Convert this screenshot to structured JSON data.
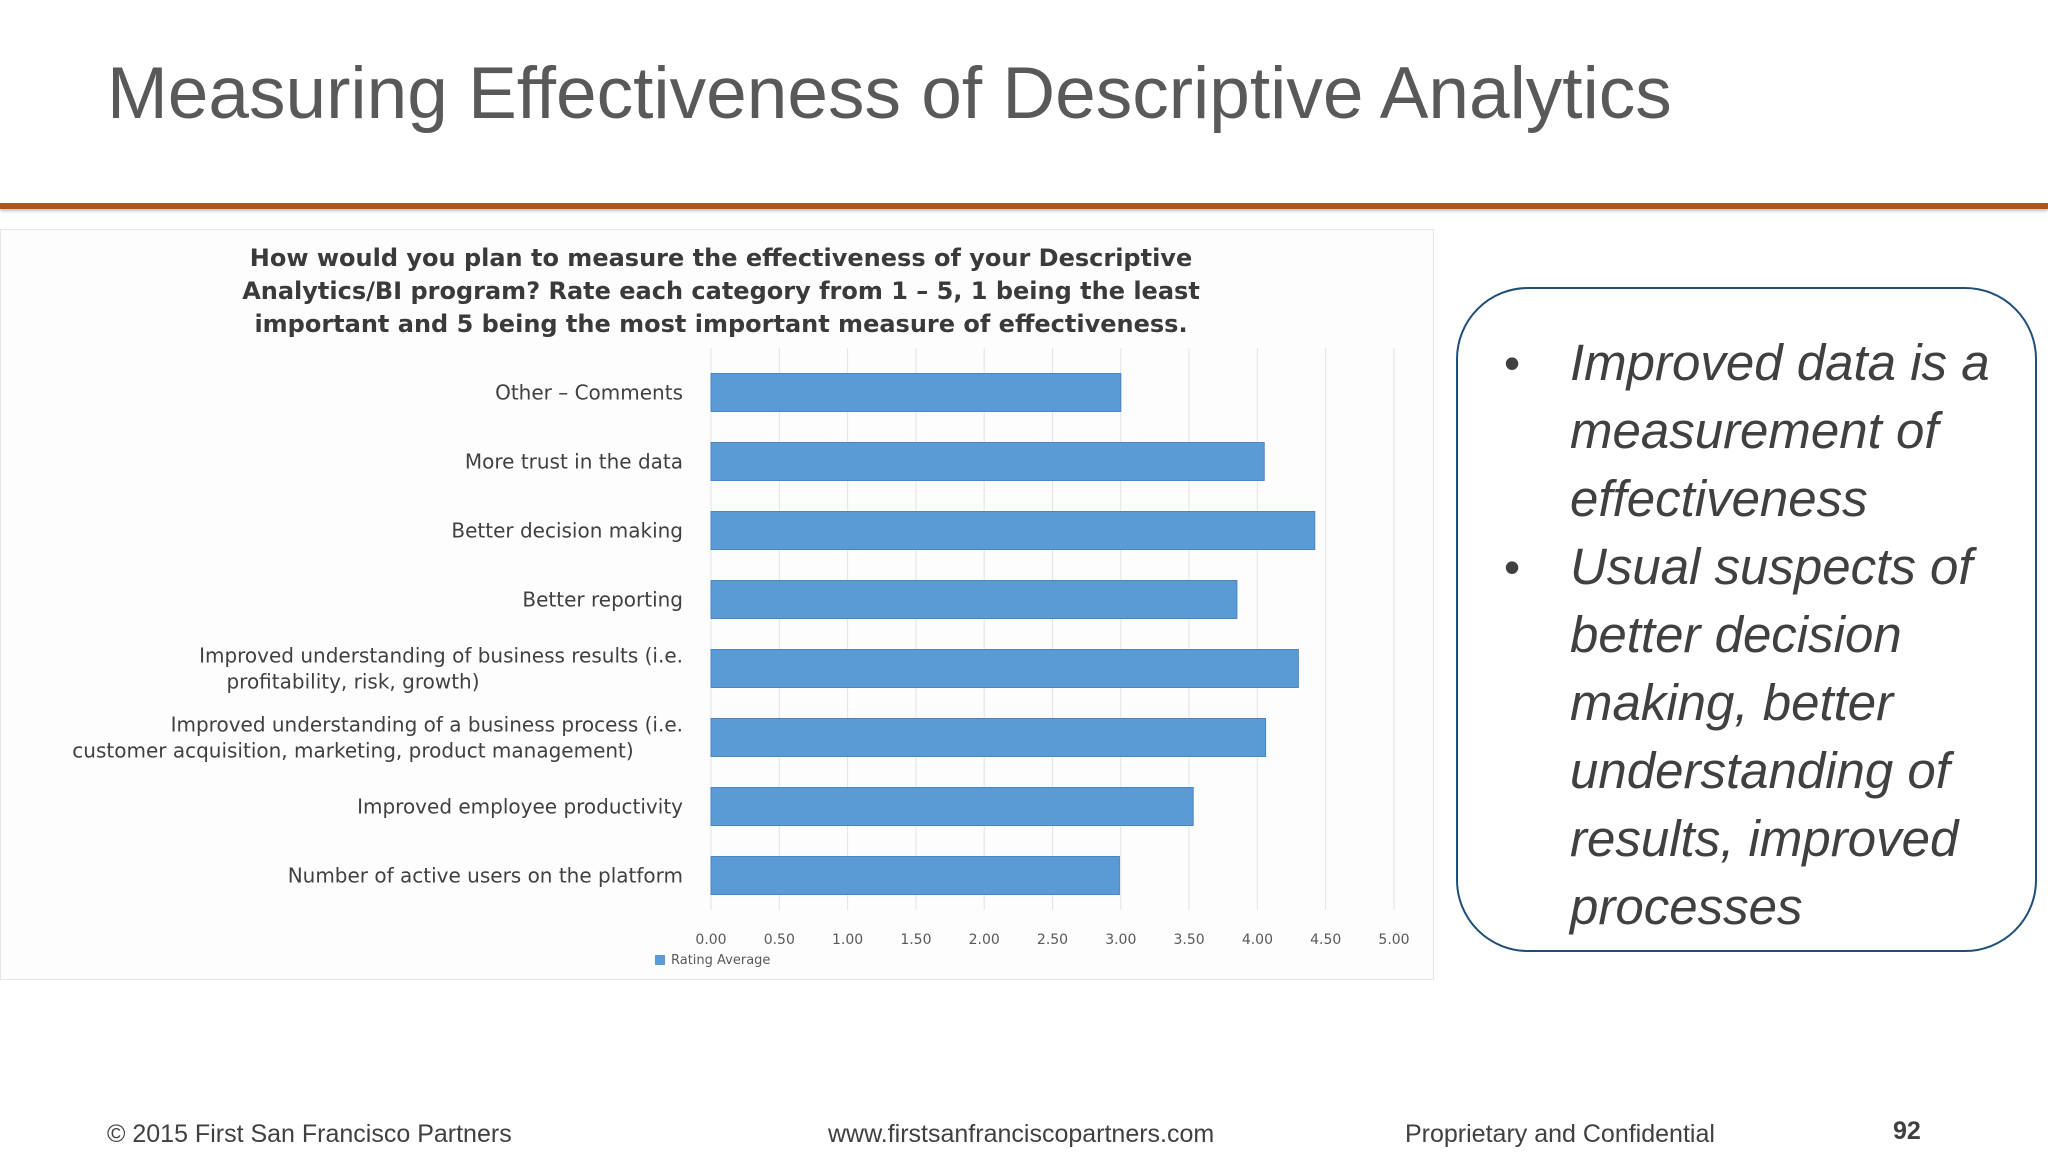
{
  "slide": {
    "title": "Measuring Effectiveness of Descriptive Analytics",
    "accent_color": "#b5531f"
  },
  "chart_data": {
    "type": "bar",
    "orientation": "horizontal",
    "title": "How would you plan to measure the effectiveness of your Descriptive Analytics/BI program? Rate each category from 1 – 5, 1 being the least important and 5 being the most important measure of effectiveness.",
    "title_lines": [
      "How would you plan to measure the effectiveness of your Descriptive",
      "Analytics/BI program? Rate each category from 1 – 5, 1 being the least",
      "important and 5 being the most important measure of effectiveness."
    ],
    "categories": [
      "Other – Comments",
      "More trust in the data",
      "Better decision making",
      "Better reporting",
      "Improved understanding of business results (i.e. profitability, risk, growth)",
      "Improved understanding of a business process (i.e. customer acquisition, marketing, product management)",
      "Improved employee productivity",
      "Number of active users on the platform"
    ],
    "category_lines": [
      [
        "Other – Comments"
      ],
      [
        "More trust in the data"
      ],
      [
        "Better decision making"
      ],
      [
        "Better reporting"
      ],
      [
        "Improved understanding of business results (i.e.",
        "profitability, risk, growth)"
      ],
      [
        "Improved understanding of a business process (i.e.",
        "customer acquisition, marketing, product management)"
      ],
      [
        "Improved employee productivity"
      ],
      [
        "Number of active users on the platform"
      ]
    ],
    "series": [
      {
        "name": "Rating Average",
        "color": "#5b9bd5",
        "values": [
          3.0,
          4.05,
          4.42,
          3.85,
          4.3,
          4.06,
          3.53,
          2.99
        ]
      }
    ],
    "xlim": [
      0,
      5
    ],
    "xticks": [
      "0.00",
      "0.50",
      "1.00",
      "1.50",
      "2.00",
      "2.50",
      "3.00",
      "3.50",
      "4.00",
      "4.50",
      "5.00"
    ],
    "grid": true,
    "legend": "bottom-left"
  },
  "callout": {
    "bullets": [
      "Improved data is a measurement of effectiveness",
      "Usual suspects of better decision making, better understanding of results, improved processes"
    ],
    "bullet_symbol": "•",
    "border_color": "#1f4e79"
  },
  "footer": {
    "copyright": "© 2015 First San Francisco Partners",
    "url": "www.firstsanfranciscopartners.com",
    "confidential": "Proprietary and Confidential",
    "page_number": "92"
  }
}
